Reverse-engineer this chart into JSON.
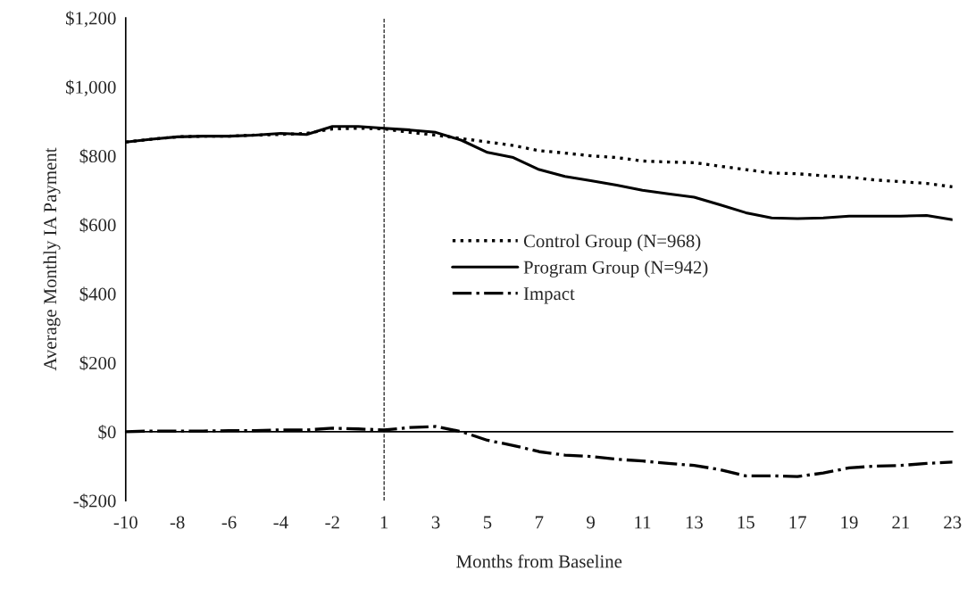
{
  "chart_data": {
    "type": "line",
    "xlabel": "Months from Baseline",
    "ylabel": "Average Monthly IA Payment",
    "categories": [
      "-10",
      null,
      "-8",
      null,
      "-6",
      null,
      "-4",
      null,
      "-2",
      null,
      "1",
      null,
      "3",
      null,
      "5",
      null,
      "7",
      null,
      "9",
      null,
      "11",
      null,
      "13",
      null,
      "15",
      null,
      "17",
      null,
      "19",
      null,
      "21",
      null,
      "23"
    ],
    "series": [
      {
        "name": "Control Group (N=968)",
        "color": "#000000",
        "line_style": "dotted",
        "values": [
          840,
          848,
          855,
          857,
          857,
          860,
          862,
          865,
          878,
          880,
          878,
          868,
          860,
          850,
          840,
          830,
          815,
          808,
          800,
          795,
          785,
          782,
          780,
          770,
          760,
          750,
          748,
          742,
          738,
          730,
          725,
          720,
          710
        ]
      },
      {
        "name": "Program Group (N=942)",
        "color": "#000000",
        "line_style": "solid",
        "values": [
          840,
          848,
          855,
          857,
          857,
          860,
          865,
          862,
          885,
          885,
          880,
          875,
          868,
          845,
          810,
          795,
          760,
          740,
          728,
          715,
          700,
          690,
          680,
          658,
          635,
          620,
          618,
          620,
          625,
          625,
          625,
          627,
          615
        ]
      },
      {
        "name": "Impact",
        "color": "#000000",
        "line_style": "dashdot",
        "values": [
          0,
          2,
          2,
          2,
          3,
          3,
          5,
          5,
          10,
          8,
          5,
          12,
          15,
          0,
          -25,
          -40,
          -58,
          -68,
          -72,
          -80,
          -85,
          -92,
          -98,
          -110,
          -128,
          -128,
          -130,
          -120,
          -105,
          -100,
          -98,
          -92,
          -88
        ]
      }
    ],
    "ylim": [
      -200,
      1200
    ],
    "yticks": [
      {
        "value": -200,
        "label": "-$200"
      },
      {
        "value": 0,
        "label": "$0"
      },
      {
        "value": 200,
        "label": "$200"
      },
      {
        "value": 400,
        "label": "$400"
      },
      {
        "value": 600,
        "label": "$600"
      },
      {
        "value": 800,
        "label": "$800"
      },
      {
        "value": 1000,
        "label": "$1,000"
      },
      {
        "value": 1200,
        "label": "$1,200"
      }
    ],
    "ref_lines": [
      {
        "axis": "x",
        "value": "1",
        "line_style": "dashed",
        "color": "#000000"
      }
    ],
    "grid": false,
    "legend": "center",
    "marker": "none"
  }
}
